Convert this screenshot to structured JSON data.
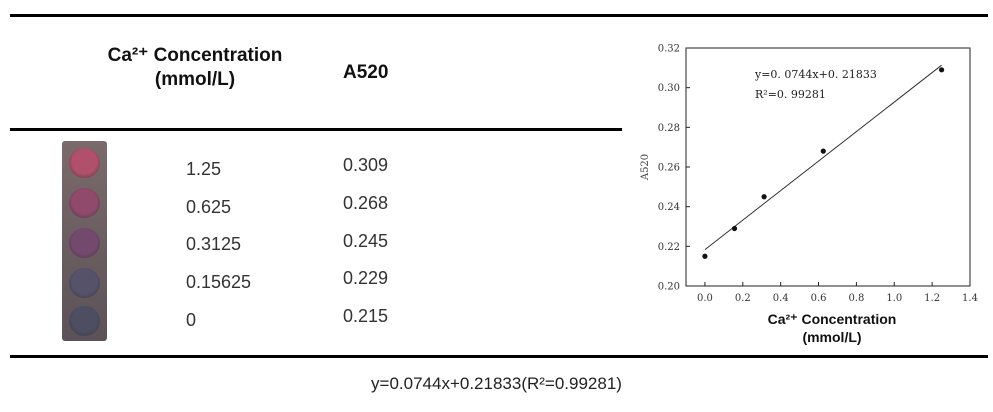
{
  "table": {
    "header_conc": "Ca²⁺ Concentration",
    "header_conc_unit": "(mmol/L)",
    "header_abs": "A520",
    "rows": [
      {
        "conc": "1.25",
        "abs": "0.309"
      },
      {
        "conc": "0.625",
        "abs": "0.268"
      },
      {
        "conc": "0.3125",
        "abs": "0.245"
      },
      {
        "conc": "0.15625",
        "abs": "0.229"
      },
      {
        "conc": "0",
        "abs": "0.215"
      }
    ]
  },
  "well_colors": [
    "#b0506a",
    "#8f4a6c",
    "#74496e",
    "#55526a",
    "#4d4e62"
  ],
  "footer_formula": "y=0.0744x+0.21833(R²=0.99281)",
  "chart_data": {
    "type": "scatter",
    "xlabel": "Ca²⁺ Concentration",
    "xlabel_unit": "(mmol/L)",
    "ylabel": "A520",
    "xlim": [
      -0.1,
      1.4
    ],
    "ylim": [
      0.2,
      0.32
    ],
    "xticks": [
      "0.0",
      "0.2",
      "0.4",
      "0.6",
      "0.8",
      "1.0",
      "1.2",
      "1.4"
    ],
    "xtick_values": [
      0.0,
      0.2,
      0.4,
      0.6,
      0.8,
      1.0,
      1.2,
      1.4
    ],
    "yticks": [
      "0.20",
      "0.22",
      "0.24",
      "0.26",
      "0.28",
      "0.30",
      "0.32"
    ],
    "ytick_values": [
      0.2,
      0.22,
      0.24,
      0.26,
      0.28,
      0.3,
      0.32
    ],
    "points": [
      {
        "x": 0,
        "y": 0.215
      },
      {
        "x": 0.15625,
        "y": 0.229
      },
      {
        "x": 0.3125,
        "y": 0.245
      },
      {
        "x": 0.625,
        "y": 0.268
      },
      {
        "x": 1.25,
        "y": 0.309
      }
    ],
    "fit": {
      "slope": 0.0744,
      "intercept": 0.21833,
      "x_range": [
        0,
        1.25
      ]
    },
    "annotation_eq": "y=0. 0744x+0. 21833",
    "annotation_r2": "R²=0. 99281",
    "grid": false
  }
}
